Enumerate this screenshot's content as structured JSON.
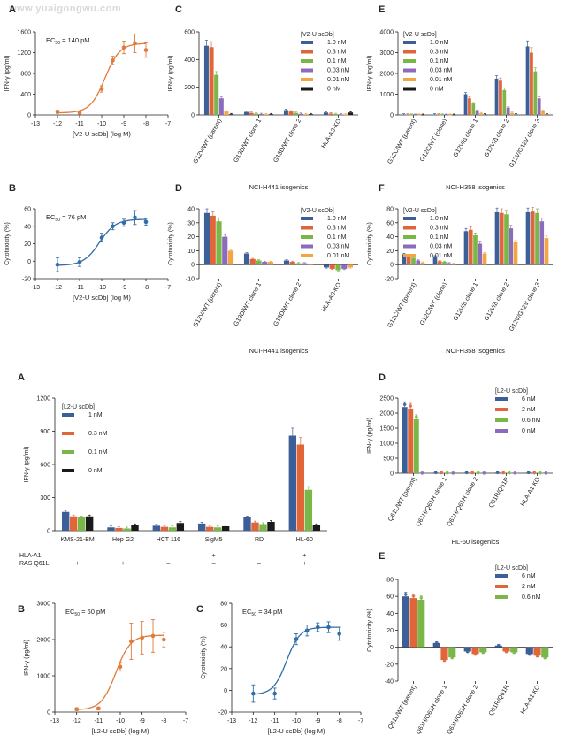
{
  "watermark": "www.yuaigongwu.com",
  "colors": {
    "blue": "#3b5f96",
    "red": "#e0663a",
    "green": "#7ab648",
    "orange": "#f2a541",
    "purple": "#8b6bbb",
    "black": "#1a1a1a",
    "curve_orange": "#e07b3a",
    "curve_blue": "#2f6ea6"
  },
  "chart_data": [
    {
      "id": "top-A",
      "panel": "A",
      "type": "scatter",
      "ylabel": "IFN-γ (pg/ml)",
      "xlabel": "[V2-U scDb] (log M)",
      "xlim": [
        -13,
        -7
      ],
      "ylim": [
        0,
        1600
      ],
      "yticks": [
        0,
        400,
        800,
        1200,
        1600
      ],
      "xticks": [
        -13,
        -12,
        -11,
        -10,
        -9,
        -8,
        -7
      ],
      "annotation": "EC50 = 140 pM",
      "color": "curve_orange",
      "x": [
        -12,
        -11,
        -10,
        -9.5,
        -9,
        -8.5,
        -8
      ],
      "y": [
        60,
        40,
        500,
        1050,
        1300,
        1380,
        1250
      ],
      "err": [
        30,
        20,
        60,
        80,
        120,
        180,
        140
      ],
      "fit": {
        "bottom": 40,
        "top": 1380,
        "log_ec50": -9.85,
        "hill": 1.3
      }
    },
    {
      "id": "top-B",
      "panel": "B",
      "type": "scatter",
      "ylabel": "Cytotoxicity (%)",
      "xlabel": "[V2-U scDb] (log M)",
      "xlim": [
        -13,
        -7
      ],
      "ylim": [
        -20,
        60
      ],
      "yticks": [
        -20,
        0,
        20,
        40,
        60
      ],
      "xticks": [
        -13,
        -12,
        -11,
        -10,
        -9,
        -8,
        -7
      ],
      "annotation": "EC50 = 76 pM",
      "color": "curve_blue",
      "x": [
        -12,
        -11,
        -10,
        -9.5,
        -9,
        -8.5,
        -8
      ],
      "y": [
        -4,
        -1,
        27,
        40,
        44,
        50,
        45
      ],
      "err": [
        8,
        5,
        5,
        4,
        4,
        8,
        4
      ],
      "fit": {
        "bottom": -5,
        "top": 48,
        "log_ec50": -10.1,
        "hill": 1.2
      }
    },
    {
      "id": "top-C",
      "panel": "C",
      "type": "bar",
      "ylabel": "IFN-γ (pg/ml)",
      "xlabel": "NCI-H441 isogenics",
      "ylim": [
        0,
        600
      ],
      "yticks": [
        0,
        200,
        400,
        600
      ],
      "categories": [
        "G12V/WT (parent)",
        "G13D/WT clone 1",
        "G13D/WT clone 2",
        "HLA-A3-KO"
      ],
      "legend_title": "[V2-U scDb]",
      "series": [
        {
          "name": "1.0 nM",
          "color": "blue",
          "values": [
            500,
            22,
            35,
            18
          ]
        },
        {
          "name": "0.3 nM",
          "color": "red",
          "values": [
            490,
            15,
            25,
            10
          ]
        },
        {
          "name": "0.1 nM",
          "color": "green",
          "values": [
            290,
            10,
            15,
            6
          ]
        },
        {
          "name": "0.03 nM",
          "color": "purple",
          "values": [
            120,
            6,
            8,
            4
          ]
        },
        {
          "name": "0.01 nM",
          "color": "orange",
          "values": [
            25,
            5,
            5,
            3
          ]
        },
        {
          "name": "0 nM",
          "color": "black",
          "values": [
            5,
            5,
            5,
            18
          ]
        }
      ]
    },
    {
      "id": "top-D",
      "panel": "D",
      "type": "bar",
      "ylabel": "Cytotoxicity (%)",
      "xlabel": "NCI-H441 isogenics",
      "ylim": [
        -10,
        40
      ],
      "yticks": [
        -10,
        0,
        10,
        20,
        30,
        40
      ],
      "categories": [
        "G12V/WT (parent)",
        "G13D/WT clone 1",
        "G13D/WT clone 2",
        "HLA-A3-KO"
      ],
      "legend_title": "[V2-U scDb]",
      "series": [
        {
          "name": "1.0 nM",
          "color": "blue",
          "values": [
            37,
            8,
            3,
            -2
          ]
        },
        {
          "name": "0.3 nM",
          "color": "red",
          "values": [
            35,
            4,
            2,
            -3
          ]
        },
        {
          "name": "0.1 nM",
          "color": "green",
          "values": [
            31,
            3,
            1,
            -4
          ]
        },
        {
          "name": "0.03 nM",
          "color": "purple",
          "values": [
            20,
            2,
            1,
            -3
          ]
        },
        {
          "name": "0.01 nM",
          "color": "orange",
          "values": [
            10,
            2,
            0,
            -2
          ]
        }
      ]
    },
    {
      "id": "top-E",
      "panel": "E",
      "type": "bar",
      "ylabel": "IFN-γ (pg/ml)",
      "xlabel": "NCI-H358 isogenics",
      "ylim": [
        0,
        4000
      ],
      "yticks": [
        0,
        1000,
        2000,
        3000,
        4000
      ],
      "categories": [
        "G12C/WT (parent)",
        "G12C/WT (clone)",
        "G12V/Δ clone 1",
        "G12V/Δ clone 2",
        "G12V/G12V clone 3"
      ],
      "legend_title": "[V2-U scDb]",
      "series": [
        {
          "name": "1.0 nM",
          "color": "blue",
          "values": [
            20,
            20,
            1000,
            1750,
            3300
          ]
        },
        {
          "name": "0.3 nM",
          "color": "red",
          "values": [
            15,
            15,
            800,
            1650,
            3000
          ]
        },
        {
          "name": "0.1 nM",
          "color": "green",
          "values": [
            10,
            10,
            550,
            1200,
            2100
          ]
        },
        {
          "name": "0.03 nM",
          "color": "purple",
          "values": [
            5,
            5,
            200,
            350,
            800
          ]
        },
        {
          "name": "0.01 nM",
          "color": "orange",
          "values": [
            5,
            5,
            80,
            100,
            200
          ]
        },
        {
          "name": "0 nM",
          "color": "black",
          "values": [
            5,
            5,
            20,
            20,
            20
          ]
        }
      ]
    },
    {
      "id": "top-F",
      "panel": "F",
      "type": "bar",
      "ylabel": "Cytotoxicity (%)",
      "xlabel": "NCI-H358 isogenics",
      "ylim": [
        -20,
        80
      ],
      "yticks": [
        -20,
        0,
        20,
        40,
        60,
        80
      ],
      "categories": [
        "G12C/WT (parent)",
        "G12C/WT (clone)",
        "G12V/Δ clone 1",
        "G12V/Δ clone 2",
        "G12V/G12V clone 3"
      ],
      "legend_title": "[V2-U scDb]",
      "series": [
        {
          "name": "1.0 nM",
          "color": "blue",
          "values": [
            15,
            12,
            48,
            75,
            75
          ]
        },
        {
          "name": "0.3 nM",
          "color": "red",
          "values": [
            12,
            5,
            50,
            74,
            76
          ]
        },
        {
          "name": "0.1 nM",
          "color": "green",
          "values": [
            10,
            4,
            42,
            72,
            74
          ]
        },
        {
          "name": "0.03 nM",
          "color": "purple",
          "values": [
            6,
            2,
            30,
            52,
            62
          ]
        },
        {
          "name": "0.01 nM",
          "color": "orange",
          "values": [
            3,
            1,
            16,
            32,
            38
          ]
        }
      ]
    },
    {
      "id": "bot-A",
      "panel": "A",
      "type": "bar",
      "ylabel": "IFN-γ (pg/ml)",
      "ylim": [
        0,
        1200
      ],
      "yticks": [
        0,
        300,
        600,
        900,
        1200
      ],
      "categories": [
        "KMS-21-BM",
        "Hep G2",
        "HCT 116",
        "SigM5",
        "RD",
        "HL-60"
      ],
      "legend_title": "[L2-U scDb]",
      "series": [
        {
          "name": "1 nM",
          "color": "blue",
          "values": [
            170,
            30,
            45,
            65,
            120,
            860
          ]
        },
        {
          "name": "0.3 nM",
          "color": "red",
          "values": [
            130,
            25,
            35,
            35,
            75,
            780
          ]
        },
        {
          "name": "0.1 nM",
          "color": "green",
          "values": [
            120,
            20,
            30,
            30,
            60,
            370
          ]
        },
        {
          "name": "0 nM",
          "color": "black",
          "values": [
            130,
            50,
            70,
            40,
            80,
            50
          ]
        }
      ],
      "table": {
        "rows": [
          {
            "label": "HLA-A1",
            "values": [
              "–",
              "–",
              "–",
              "+",
              "–",
              "+"
            ]
          },
          {
            "label": "RAS Q61L",
            "values": [
              "+",
              "+",
              "–",
              "–",
              "–",
              "+"
            ]
          }
        ]
      }
    },
    {
      "id": "bot-B",
      "panel": "B",
      "type": "scatter",
      "ylabel": "IFN-γ (pg/ml)",
      "xlabel": "[L2-U scDb] (log M)",
      "xlim": [
        -13,
        -7
      ],
      "ylim": [
        0,
        3000
      ],
      "yticks": [
        0,
        1000,
        2000,
        3000
      ],
      "xticks": [
        -13,
        -12,
        -11,
        -10,
        -9,
        -8,
        -7
      ],
      "annotation": "EC50 = 60 pM",
      "color": "curve_orange",
      "x": [
        -12,
        -11,
        -10,
        -9.5,
        -9,
        -8.5,
        -8
      ],
      "y": [
        80,
        100,
        1250,
        1950,
        2050,
        2100,
        2000
      ],
      "err": [
        40,
        40,
        120,
        500,
        450,
        450,
        200
      ],
      "fit": {
        "bottom": 60,
        "top": 2120,
        "log_ec50": -10.2,
        "hill": 1.3
      }
    },
    {
      "id": "bot-C",
      "panel": "C",
      "type": "scatter",
      "ylabel": "Cytotoxicity (%)",
      "xlabel": "[L2-U scDb] (log M)",
      "xlim": [
        -13,
        -7
      ],
      "ylim": [
        -20,
        80
      ],
      "yticks": [
        -20,
        0,
        20,
        40,
        60,
        80
      ],
      "xticks": [
        -13,
        -12,
        -11,
        -10,
        -9,
        -8,
        -7
      ],
      "annotation": "EC50 = 34 pM",
      "color": "curve_blue",
      "x": [
        -12,
        -11,
        -10,
        -9.5,
        -9,
        -8.5,
        -8
      ],
      "y": [
        -3,
        -3,
        47,
        55,
        58,
        58,
        52
      ],
      "err": [
        8,
        5,
        5,
        5,
        4,
        5,
        6
      ],
      "fit": {
        "bottom": -4,
        "top": 58,
        "log_ec50": -10.45,
        "hill": 1.4
      }
    },
    {
      "id": "bot-D",
      "panel": "D",
      "type": "bar",
      "ylabel": "IFN-γ (pg/ml)",
      "xlabel": "HL-60 isogenics",
      "ylim": [
        0,
        2500
      ],
      "yticks": [
        0,
        500,
        1000,
        1500,
        2000,
        2500
      ],
      "categories": [
        "Q61L/WT (parent)",
        "Q61H/Q61H clone 1",
        "Q61H/Q61H clone 2",
        "Q61R/Q61R",
        "HLA-A1 KO"
      ],
      "legend_title": "[L2-U scDb]",
      "series": [
        {
          "name": "6 nM",
          "color": "blue",
          "values": [
            2200,
            20,
            20,
            20,
            20
          ]
        },
        {
          "name": "2 nM",
          "color": "red",
          "values": [
            2150,
            15,
            15,
            15,
            15
          ]
        },
        {
          "name": "0.6 nM",
          "color": "green",
          "values": [
            1800,
            10,
            10,
            10,
            10
          ]
        },
        {
          "name": "0 nM",
          "color": "purple",
          "values": [
            5,
            5,
            5,
            5,
            5
          ]
        }
      ]
    },
    {
      "id": "bot-E",
      "panel": "E",
      "type": "bar",
      "ylabel": "Cytotoxicity (%)",
      "xlabel": "HL-60 isogenics",
      "ylim": [
        -40,
        80
      ],
      "yticks": [
        -40,
        -20,
        0,
        20,
        40,
        60,
        80
      ],
      "categories": [
        "Q61L/WT (parent)",
        "Q61H/Q61H clone 1",
        "Q61H/Q61H clone 2",
        "Q61R/Q61R",
        "HLA-A1 KO"
      ],
      "legend_title": "[L2-U scDb]",
      "series": [
        {
          "name": "6 nM",
          "color": "blue",
          "values": [
            60,
            5,
            -5,
            2,
            -8
          ]
        },
        {
          "name": "2 nM",
          "color": "red",
          "values": [
            58,
            -15,
            -8,
            -5,
            -10
          ]
        },
        {
          "name": "0.6 nM",
          "color": "green",
          "values": [
            56,
            -12,
            -6,
            -6,
            -12
          ]
        }
      ]
    }
  ]
}
